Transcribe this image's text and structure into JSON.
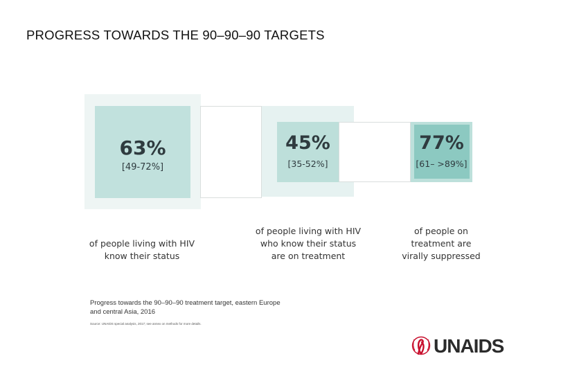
{
  "title": "PROGRESS TOWARDS THE 90–90–90 TARGETS",
  "stages": [
    {
      "percent": "63%",
      "range": "[49-72%]",
      "label_lines": [
        "of people living with HIV",
        "know their status"
      ]
    },
    {
      "percent": "45%",
      "range": "[35-52%]",
      "label_lines": [
        "of people living with HIV",
        "who know their status",
        "are on treatment"
      ]
    },
    {
      "percent": "77%",
      "range": "[61– >89%]",
      "label_lines": [
        "of people on",
        "treatment are",
        "virally suppressed"
      ]
    }
  ],
  "caption_lines": [
    "Progress towards the 90–90–90 treatment target, eastern Europe",
    "and central Asia, 2016"
  ],
  "source": "Source: UNAIDS special analysis, 2017; see annex on methods for more details.",
  "logo": {
    "text": "UNAIDS",
    "color": "#c8102e"
  }
}
